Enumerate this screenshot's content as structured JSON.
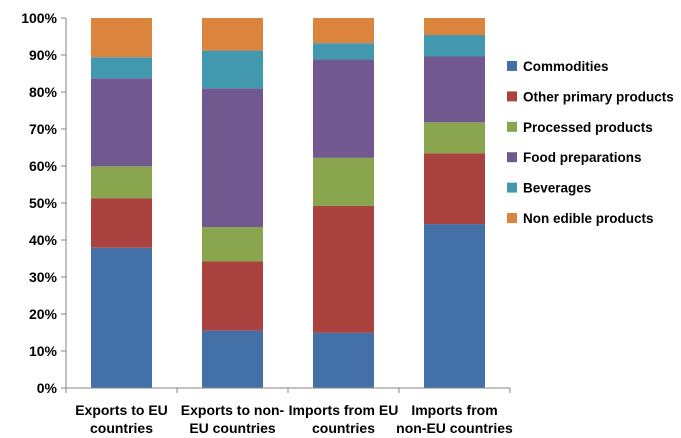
{
  "chart_data": {
    "type": "bar",
    "stacked": true,
    "percent": true,
    "categories": [
      [
        "Exports to EU",
        "countries"
      ],
      [
        "Exports to non-",
        "EU countries"
      ],
      [
        "Imports from EU",
        "countries"
      ],
      [
        "Imports from",
        "non-EU countries"
      ]
    ],
    "ylim": [
      0,
      100
    ],
    "yticks": [
      "0%",
      "10%",
      "20%",
      "30%",
      "40%",
      "50%",
      "60%",
      "70%",
      "80%",
      "90%",
      "100%"
    ],
    "grid": false,
    "legend_position": "right",
    "series": [
      {
        "name": "Commodities",
        "color": "#4470A8",
        "values": [
          37.9,
          15.5,
          14.9,
          44.3
        ]
      },
      {
        "name": "Other primary products",
        "color": "#AA4340",
        "values": [
          13.4,
          18.7,
          34.3,
          19.1
        ]
      },
      {
        "name": "Processed products",
        "color": "#89A54E",
        "values": [
          8.6,
          9.3,
          13.0,
          8.4
        ]
      },
      {
        "name": "Food preparations",
        "color": "#71588F",
        "values": [
          23.8,
          37.5,
          26.6,
          17.8
        ]
      },
      {
        "name": "Beverages",
        "color": "#4298AF",
        "values": [
          5.7,
          10.2,
          4.4,
          5.8
        ]
      },
      {
        "name": "Non edible products",
        "color": "#DB843D",
        "values": [
          10.6,
          8.8,
          6.8,
          4.6
        ]
      }
    ]
  }
}
